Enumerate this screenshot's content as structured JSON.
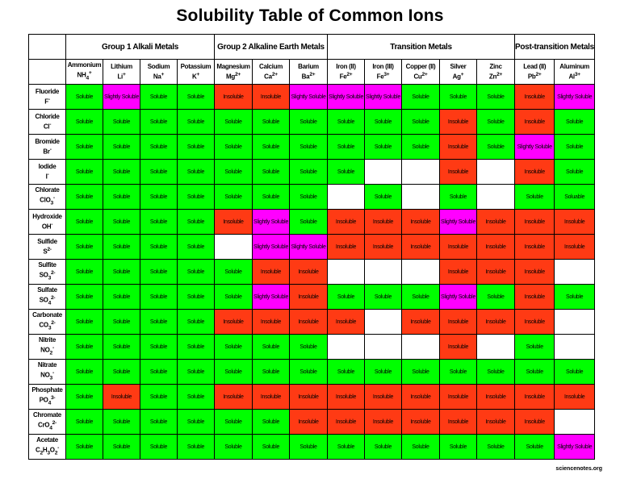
{
  "title": "Solubility Table of Common Ions",
  "watermark": "sciencenotes.org",
  "colors": {
    "Soluble": "#00ff00",
    "Insoluble": "#ff3a14",
    "Slightly Soluble": "#ff00ff",
    "": "#ffffff"
  },
  "groups": [
    {
      "label": "",
      "span": 1
    },
    {
      "label": "Group 1 Alkali Metals",
      "span": 4
    },
    {
      "label": "Group 2 Alkaline Earth Metals",
      "span": 3
    },
    {
      "label": "Transition Metals",
      "span": 5
    },
    {
      "label": "Post-transition Metals",
      "span": 2
    }
  ],
  "cations": [
    {
      "name": "Ammonium",
      "formula": "NH4+"
    },
    {
      "name": "Lithium",
      "formula": "Li+"
    },
    {
      "name": "Sodium",
      "formula": "Na+"
    },
    {
      "name": "Potassium",
      "formula": "K+"
    },
    {
      "name": "Magnesium",
      "formula": "Mg2+"
    },
    {
      "name": "Calcium",
      "formula": "Ca2+"
    },
    {
      "name": "Barium",
      "formula": "Ba2+"
    },
    {
      "name": "Iron (II)",
      "formula": "Fe2+"
    },
    {
      "name": "Iron (III)",
      "formula": "Fe3+"
    },
    {
      "name": "Copper (II)",
      "formula": "Cu2+"
    },
    {
      "name": "Silver",
      "formula": "Ag+"
    },
    {
      "name": "Zinc",
      "formula": "Zn2+"
    },
    {
      "name": "Lead (II)",
      "formula": "Pb2+"
    },
    {
      "name": "Aluminum",
      "formula": "Al3+"
    }
  ],
  "rows": [
    {
      "name": "Fluoride",
      "formula": "F-",
      "cells": [
        "Soluble",
        "Slightly Soluble",
        "Soluble",
        "Soluble",
        "Insoluble",
        "Insoluble",
        "Slightly Soluble",
        "Slightly Soluble",
        "Slightly Soluble",
        "Soluble",
        "Soluble",
        "Soluble",
        "Insoluble",
        "Slightly Soluble"
      ]
    },
    {
      "name": "Chloride",
      "formula": "Cl-",
      "cells": [
        "Soluble",
        "Soluble",
        "Soluble",
        "Soluble",
        "Soluble",
        "Soluble",
        "Soluble",
        "Soluble",
        "Soluble",
        "Soluble",
        "Insoluble",
        "Soluble",
        "Insoluble",
        "Soluble"
      ]
    },
    {
      "name": "Bromide",
      "formula": "Br-",
      "cells": [
        "Soluble",
        "Soluble",
        "Soluble",
        "Soluble",
        "Soluble",
        "Soluble",
        "Soluble",
        "Soluble",
        "Soluble",
        "Soluble",
        "Insoluble",
        "Soluble",
        "Slightly Soluble",
        "Soluble"
      ]
    },
    {
      "name": "Iodide",
      "formula": "I-",
      "cells": [
        "Soluble",
        "Soluble",
        "Soluble",
        "Soluble",
        "Soluble",
        "Soluble",
        "Soluble",
        "Soluble",
        "",
        "",
        "Insoluble",
        "",
        "Insoluble",
        "Soluble"
      ]
    },
    {
      "name": "Chlorate",
      "formula": "ClO3-",
      "cells": [
        "Soluble",
        "Soluble",
        "Soluble",
        "Soluble",
        "Soluble",
        "Soluble",
        "Soluble",
        "",
        "Soluble",
        "",
        "Soluble",
        "",
        "Soluble",
        "Soluable"
      ]
    },
    {
      "name": "Hydroxide",
      "formula": "OH-",
      "cells": [
        "Soluble",
        "Soluble",
        "Soluble",
        "Soluble",
        "Insoluble",
        "Slightly Soluble",
        "Soluble",
        "Insoluble",
        "Insoluble",
        "Insoluble",
        "Slightly Soluble",
        "Insoluble",
        "Insoluble",
        "Insoluble"
      ]
    },
    {
      "name": "Sulfide",
      "formula": "S2-",
      "cells": [
        "Soluble",
        "Soluble",
        "Soluble",
        "Soluble",
        "",
        "Slightly Soluble",
        "Slightly Soluble",
        "Insoluble",
        "Insoluble",
        "Insoluble",
        "Insoluble",
        "Insoluble",
        "Insoluble",
        "Insoluble"
      ]
    },
    {
      "name": "Sulfite",
      "formula": "SO32-",
      "cells": [
        "Soluble",
        "Soluble",
        "Soluble",
        "Soluble",
        "Soluble",
        "Insoluble",
        "Insoluble",
        "",
        "",
        "",
        "Insoluble",
        "Insoluble",
        "Insoluble",
        ""
      ]
    },
    {
      "name": "Sulfate",
      "formula": "SO42-",
      "cells": [
        "Soluble",
        "Soluble",
        "Soluble",
        "Soluble",
        "Soluble",
        "Slightly Soluble",
        "Insoluble",
        "Soluble",
        "Soluble",
        "Soluble",
        "Slightly Soluble",
        "Soluble",
        "Insoluble",
        "Soluble"
      ]
    },
    {
      "name": "Carbonate",
      "formula": "CO32-",
      "cells": [
        "Soluble",
        "Soluble",
        "Soluble",
        "Soluble",
        "Insoluble",
        "Insoluble",
        "Insoluble",
        "Insoluble",
        "",
        "Insoluble",
        "Insoluble",
        "Insoluble",
        "Insoluble",
        ""
      ]
    },
    {
      "name": "Nitrite",
      "formula": "NO2-",
      "cells": [
        "Soluble",
        "Soluble",
        "Soluble",
        "Soluble",
        "Soluble",
        "Soluble",
        "Soluble",
        "",
        "",
        "",
        "Insoluble",
        "",
        "Soluble",
        ""
      ]
    },
    {
      "name": "Nitrate",
      "formula": "NO3-",
      "cells": [
        "Soluble",
        "Soluble",
        "Soluble",
        "Soluble",
        "Soluble",
        "Soluble",
        "Soluble",
        "Soluble",
        "Soluble",
        "Soluble",
        "Soluble",
        "Soluble",
        "Soluble",
        "Soluble"
      ]
    },
    {
      "name": "Phosphate",
      "formula": "PO43-",
      "cells": [
        "Soluble",
        "Insoluble",
        "Soluble",
        "Soluble",
        "Insoluble",
        "Insoluble",
        "Insoluble",
        "Insoluble",
        "Insoluble",
        "Insoluble",
        "Insoluble",
        "Insoluble",
        "Insoluble",
        "Insoluble"
      ]
    },
    {
      "name": "Chromate",
      "formula": "CrO42-",
      "cells": [
        "Soluble",
        "Soluble",
        "Soluble",
        "Soluble",
        "Soluble",
        "Soluble",
        "Insoluble",
        "Insoluble",
        "Insoluble",
        "Insoluble",
        "Insoluble",
        "Insoluble",
        "Insoluble",
        ""
      ]
    },
    {
      "name": "Acetate",
      "formula": "C2H3O2-",
      "cells": [
        "Soluble",
        "Soluble",
        "Soluble",
        "Soluble",
        "Soluble",
        "Soluble",
        "Soluble",
        "Soluble",
        "Soluble",
        "Soluble",
        "Soluble",
        "Soluble",
        "Soluble",
        "Slightly Soluble"
      ]
    }
  ]
}
